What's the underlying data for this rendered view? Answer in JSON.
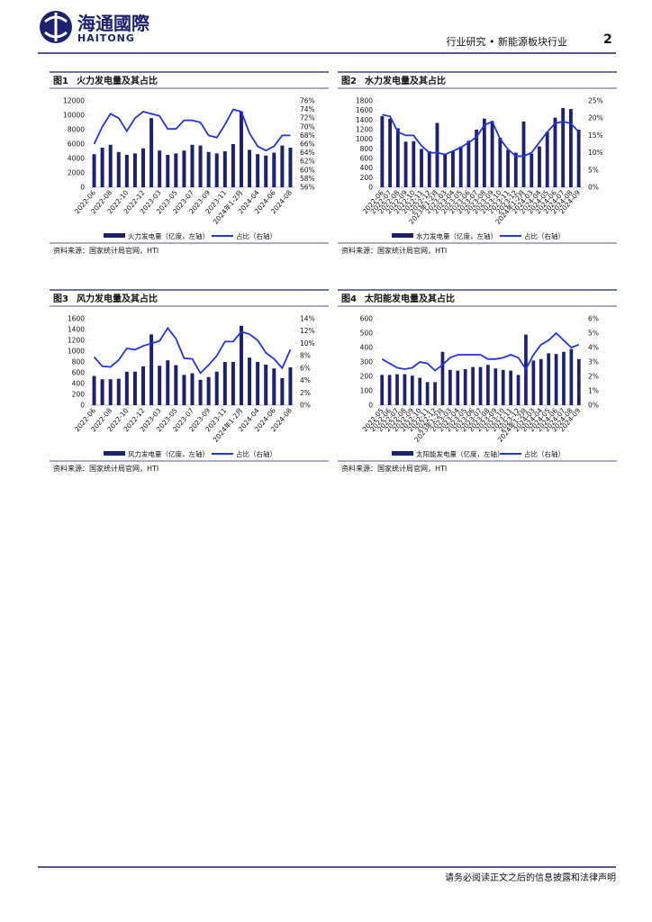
{
  "header": {
    "logo_cn": "海通國際",
    "logo_en": "HAITONG",
    "section": "行业研究 • 新能源板块行业",
    "page": "2"
  },
  "figures": [
    {
      "label": "图1",
      "title": "火力发电量及其占比",
      "source": "资料来源：国家统计局官网，HTI",
      "chart": {
        "type": "bar_line",
        "categories": [
          "2022-06",
          null,
          "2022-08",
          null,
          "2022-10",
          null,
          "2022-12",
          null,
          "2023-03",
          null,
          "2023-05",
          null,
          "2023-07",
          null,
          "2023-09",
          null,
          "2023-11",
          null,
          "2024年1-2月",
          null,
          "2024-04",
          null,
          "2024-06",
          null,
          "2024-08"
        ],
        "series": [
          {
            "name": "火力发电量（亿度，左轴）",
            "kind": "bar",
            "color": "#1c2270",
            "values": [
              4600,
              5500,
              5900,
              4900,
              4500,
              4700,
              5400,
              9600,
              5100,
              4500,
              4700,
              5100,
              5900,
              5800,
              4900,
              4700,
              5000,
              6000,
              10500,
              5200,
              4600,
              4400,
              4800,
              5800,
              5500
            ]
          },
          {
            "name": "占比（右轴）",
            "kind": "line",
            "axis": "y2",
            "color": "#2233e0",
            "values": [
              66,
              70,
              73,
              72,
              69,
              72,
              73.5,
              73,
              72.5,
              69.5,
              69.5,
              71.5,
              71.5,
              71,
              68,
              67.5,
              70.5,
              74,
              73.5,
              68.5,
              65.5,
              64.5,
              65.5,
              68,
              68
            ]
          }
        ],
        "ylim": [
          0,
          12000
        ],
        "yticks": [
          0,
          2000,
          4000,
          6000,
          8000,
          10000,
          12000
        ],
        "y2lim": [
          56,
          76
        ],
        "y2ticks": [
          {
            "value": 56,
            "label": "56%"
          },
          {
            "value": 58,
            "label": "58%"
          },
          {
            "value": 60,
            "label": "60%"
          },
          {
            "value": 62,
            "label": "62%"
          },
          {
            "value": 64,
            "label": "64%"
          },
          {
            "value": 66,
            "label": "66%"
          },
          {
            "value": 68,
            "label": "68%"
          },
          {
            "value": 70,
            "label": "70%"
          },
          {
            "value": 72,
            "label": "72%"
          },
          {
            "value": 74,
            "label": "74%"
          },
          {
            "value": 76,
            "label": "76%"
          }
        ]
      }
    },
    {
      "label": "图2",
      "title": "水力发电量及其占比",
      "source": "资料来源：国家统计局官网，HTI",
      "chart": {
        "type": "bar_line",
        "categories": [
          "2022-06",
          "2022-07",
          "2022-08",
          "2022-09",
          "2022-10",
          "2022-11",
          "2022-12",
          "2023年1-2月",
          "2023-03",
          "2023-04",
          "2023-05",
          "2023-06",
          "2023-07",
          "2023-08",
          "2023-09",
          "2023-10",
          "2023-11",
          "2023-12",
          "2024年1-2月",
          "2024-03",
          "2024-04",
          "2024-05",
          "2024-06",
          "2024-07",
          "2024-08",
          "2024-09"
        ],
        "series": [
          {
            "name": "水力发电量（亿度，左轴）",
            "kind": "bar",
            "color": "#1c2270",
            "values": [
              1480,
              1430,
              1230,
              950,
              960,
              800,
              750,
              1340,
              700,
              750,
              850,
              970,
              1200,
              1430,
              1380,
              1030,
              780,
              720,
              1370,
              700,
              850,
              1150,
              1450,
              1650,
              1630,
              1200
            ]
          },
          {
            "name": "占比（右轴）",
            "kind": "line",
            "axis": "y2",
            "color": "#2233e0",
            "values": [
              21,
              20.5,
              16,
              15,
              15,
              12,
              10,
              10,
              9.5,
              10.5,
              11.5,
              13,
              14.5,
              18,
              19,
              14,
              11,
              9,
              9,
              10,
              13,
              16,
              18.5,
              19,
              18.5,
              16
            ]
          }
        ],
        "ylim": [
          0,
          1800
        ],
        "yticks": [
          0,
          200,
          400,
          600,
          800,
          1000,
          1200,
          1400,
          1600,
          1800
        ],
        "y2lim": [
          0,
          25
        ],
        "y2ticks": [
          {
            "value": 0,
            "label": "0%"
          },
          {
            "value": 5,
            "label": "5%"
          },
          {
            "value": 10,
            "label": "10%"
          },
          {
            "value": 15,
            "label": "15%"
          },
          {
            "value": 20,
            "label": "20%"
          },
          {
            "value": 25,
            "label": "25%"
          }
        ]
      }
    },
    {
      "label": "图3",
      "title": "风力发电量及其占比",
      "source": "资料来源：国家统计局官网，HTI",
      "chart": {
        "type": "bar_line",
        "categories": [
          "2022-06",
          null,
          "2022-08",
          null,
          "2022-10",
          null,
          "2022-12",
          null,
          "2023-03",
          null,
          "2023-05",
          null,
          "2023-07",
          null,
          "2023-09",
          null,
          "2023-11",
          null,
          "2024年1-2月",
          null,
          "2024-04",
          null,
          "2024-06",
          null,
          "2024-08"
        ],
        "series": [
          {
            "name": "风力发电量（亿度，左轴）",
            "kind": "bar",
            "color": "#1c2270",
            "values": [
              540,
              480,
              480,
              490,
              620,
              620,
              720,
              1310,
              730,
              830,
              740,
              560,
              590,
              470,
              520,
              620,
              800,
              800,
              1470,
              880,
              800,
              750,
              680,
              500,
              700
            ]
          },
          {
            "name": "占比（右轴）",
            "kind": "line",
            "axis": "y2",
            "color": "#2233e0",
            "values": [
              7.8,
              6.3,
              6.2,
              7.3,
              9.2,
              9,
              9.6,
              10,
              10.4,
              12.5,
              10.8,
              7.6,
              7.5,
              5.2,
              6.5,
              8,
              10.3,
              10.3,
              11.9,
              11.5,
              10.5,
              8.5,
              7.5,
              6,
              9
            ]
          }
        ],
        "ylim": [
          0,
          1600
        ],
        "yticks": [
          0,
          200,
          400,
          600,
          800,
          1000,
          1200,
          1400,
          1600
        ],
        "y2lim": [
          0,
          14
        ],
        "y2ticks": [
          {
            "value": 0,
            "label": "0%"
          },
          {
            "value": 2,
            "label": "2%"
          },
          {
            "value": 4,
            "label": "4%"
          },
          {
            "value": 6,
            "label": "6%"
          },
          {
            "value": 8,
            "label": "8%"
          },
          {
            "value": 10,
            "label": "10%"
          },
          {
            "value": 12,
            "label": "12%"
          },
          {
            "value": 14,
            "label": "14%"
          }
        ]
      }
    },
    {
      "label": "图4",
      "title": "太阳能发电量及其占比",
      "source": "资料来源：国家统计局官网，HTI",
      "chart": {
        "type": "bar_line",
        "categories": [
          "2022-05",
          "2022-06",
          "2022-07",
          "2022-08",
          "2022-09",
          "2022-10",
          "2022-11",
          "2022-12",
          "2023年1-2月",
          "2023-03",
          "2023-04",
          "2023-05",
          "2023-06",
          "2023-07",
          "2023-08",
          "2023-09",
          "2023-10",
          "2023-11",
          "2023-12",
          "2024年1-2月",
          "2024-03",
          "2024-04",
          "2024-05",
          "2024-06",
          "2024-07",
          "2024-08",
          "2024-09"
        ],
        "series": [
          {
            "name": "太阳能发电量（亿度，左轴）",
            "kind": "bar",
            "color": "#1c2270",
            "values": [
              210,
              210,
              215,
              215,
              205,
              190,
              160,
              160,
              370,
              245,
              240,
              250,
              265,
              265,
              280,
              255,
              245,
              240,
              210,
              490,
              310,
              320,
              360,
              355,
              370,
              390,
              320
            ]
          },
          {
            "name": "占比（右轴）",
            "kind": "line",
            "axis": "y2",
            "color": "#2233e0",
            "values": [
              3.2,
              2.9,
              2.6,
              2.5,
              2.6,
              3,
              2.9,
              2.4,
              2.8,
              3.3,
              3.5,
              3.5,
              3.5,
              3.5,
              3.2,
              3.2,
              3.3,
              3.5,
              3.3,
              2.5,
              3.5,
              4.2,
              4.5,
              5,
              4.5,
              4,
              4.2
            ]
          }
        ],
        "ylim": [
          0,
          600
        ],
        "yticks": [
          0,
          100,
          200,
          300,
          400,
          500,
          600
        ],
        "y2lim": [
          0,
          6
        ],
        "y2ticks": [
          {
            "value": 0,
            "label": "0%"
          },
          {
            "value": 1,
            "label": "1%"
          },
          {
            "value": 2,
            "label": "2%"
          },
          {
            "value": 3,
            "label": "3%"
          },
          {
            "value": 4,
            "label": "4%"
          },
          {
            "value": 5,
            "label": "5%"
          },
          {
            "value": 6,
            "label": "6%"
          }
        ]
      }
    }
  ],
  "footer": "请务必阅读正文之后的信息披露和法律声明"
}
